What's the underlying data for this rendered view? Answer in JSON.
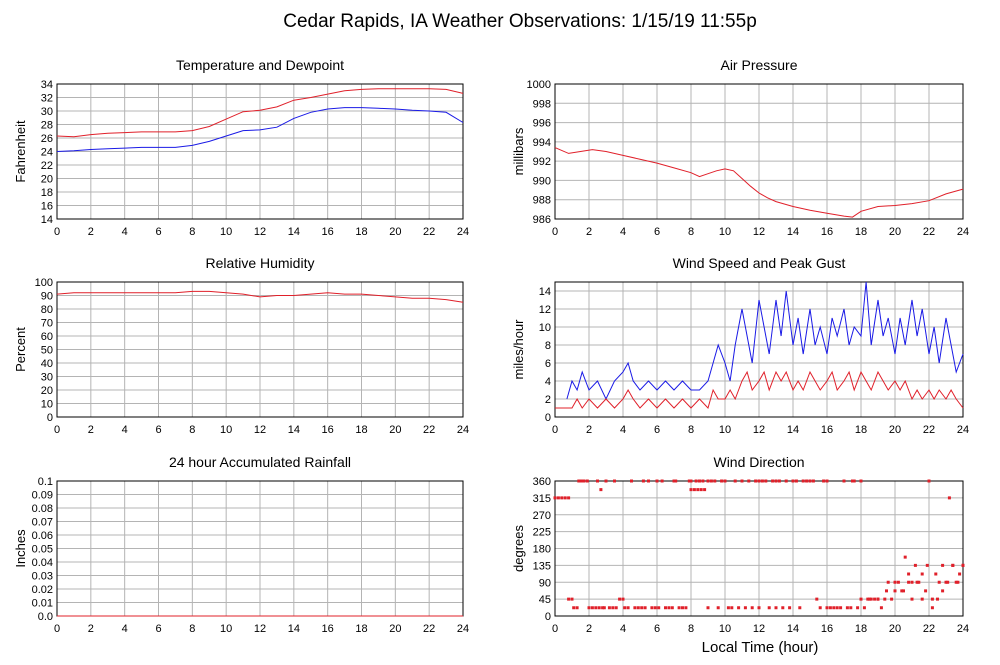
{
  "title": "Cedar Rapids, IA Weather Observations: 1/15/19 11:55p",
  "xlabel_bottom": "Local Time (hour)",
  "colors": {
    "red": "#e0202a",
    "blue": "#1a1ae6",
    "grid": "#b4b4b4",
    "frame": "#000000"
  },
  "chart_data": [
    {
      "type": "line",
      "title": "Temperature and Dewpoint",
      "ylabel": "Fahrenheit",
      "xlim": [
        0,
        24
      ],
      "ylim": [
        14,
        34
      ],
      "xticks": [
        0,
        2,
        4,
        6,
        8,
        10,
        12,
        14,
        16,
        18,
        20,
        22,
        24
      ],
      "yticks": [
        14,
        16,
        18,
        20,
        22,
        24,
        26,
        28,
        30,
        32,
        34
      ],
      "series": [
        {
          "color": "#e0202a",
          "x": [
            0,
            1,
            2,
            3,
            4,
            5,
            6,
            7,
            8,
            9,
            10,
            11,
            12,
            13,
            14,
            15,
            16,
            17,
            18,
            19,
            20,
            21,
            22,
            23,
            24
          ],
          "y": [
            26.3,
            26.2,
            26.5,
            26.7,
            26.8,
            26.9,
            26.9,
            26.9,
            27.1,
            27.7,
            28.8,
            29.9,
            30.1,
            30.6,
            31.6,
            32.0,
            32.5,
            33.0,
            33.2,
            33.3,
            33.3,
            33.3,
            33.3,
            33.2,
            32.6
          ]
        },
        {
          "color": "#1a1ae6",
          "x": [
            0,
            1,
            2,
            3,
            4,
            5,
            6,
            7,
            8,
            9,
            10,
            11,
            12,
            13,
            14,
            15,
            16,
            17,
            18,
            19,
            20,
            21,
            22,
            23,
            24
          ],
          "y": [
            24.0,
            24.1,
            24.3,
            24.4,
            24.5,
            24.6,
            24.6,
            24.6,
            24.9,
            25.5,
            26.3,
            27.1,
            27.2,
            27.6,
            28.9,
            29.8,
            30.3,
            30.5,
            30.5,
            30.4,
            30.3,
            30.1,
            30.0,
            29.8,
            28.3
          ]
        }
      ]
    },
    {
      "type": "line",
      "title": "Air Pressure",
      "ylabel": "millibars",
      "xlim": [
        0,
        24
      ],
      "ylim": [
        986,
        1000
      ],
      "xticks": [
        0,
        2,
        4,
        6,
        8,
        10,
        12,
        14,
        16,
        18,
        20,
        22,
        24
      ],
      "yticks": [
        986,
        988,
        990,
        992,
        994,
        996,
        998,
        1000
      ],
      "series": [
        {
          "color": "#e0202a",
          "x": [
            0,
            0.8,
            1.5,
            2.2,
            3,
            4,
            5,
            6,
            7,
            8,
            8.5,
            9,
            9.5,
            10,
            10.5,
            11,
            11.5,
            12,
            12.5,
            13,
            14,
            15,
            16,
            17,
            17.5,
            18,
            19,
            20,
            21,
            22,
            23,
            24
          ],
          "y": [
            993.4,
            992.8,
            993.0,
            993.2,
            993.0,
            992.6,
            992.2,
            991.8,
            991.3,
            990.8,
            990.4,
            990.7,
            991.0,
            991.2,
            991.0,
            990.2,
            989.4,
            988.7,
            988.2,
            987.8,
            987.3,
            986.9,
            986.6,
            986.3,
            986.2,
            986.8,
            987.3,
            987.4,
            987.6,
            987.9,
            988.6,
            989.1
          ]
        }
      ]
    },
    {
      "type": "line",
      "title": "Relative Humidity",
      "ylabel": "Percent",
      "xlim": [
        0,
        24
      ],
      "ylim": [
        0,
        100
      ],
      "xticks": [
        0,
        2,
        4,
        6,
        8,
        10,
        12,
        14,
        16,
        18,
        20,
        22,
        24
      ],
      "yticks": [
        0,
        10,
        20,
        30,
        40,
        50,
        60,
        70,
        80,
        90,
        100
      ],
      "series": [
        {
          "color": "#e0202a",
          "x": [
            0,
            1,
            2,
            3,
            4,
            5,
            6,
            7,
            8,
            9,
            10,
            11,
            12,
            13,
            14,
            15,
            16,
            17,
            18,
            19,
            20,
            21,
            22,
            23,
            24
          ],
          "y": [
            91,
            92,
            92,
            92,
            92,
            92,
            92,
            92,
            93,
            93,
            92,
            91,
            89,
            90,
            90,
            91,
            92,
            91,
            91,
            90,
            89,
            88,
            88,
            87,
            85
          ]
        }
      ]
    },
    {
      "type": "line",
      "title": "Wind Speed and Peak Gust",
      "ylabel": "miles/hour",
      "xlim": [
        0,
        24
      ],
      "ylim": [
        0,
        15
      ],
      "xticks": [
        0,
        2,
        4,
        6,
        8,
        10,
        12,
        14,
        16,
        18,
        20,
        22,
        24
      ],
      "yticks": [
        0,
        2,
        4,
        6,
        8,
        10,
        12,
        14
      ],
      "series": [
        {
          "color": "#1a1ae6",
          "x": [
            0.7,
            1,
            1.3,
            1.6,
            2,
            2.5,
            3,
            3.5,
            4,
            4.3,
            4.6,
            5,
            5.5,
            6,
            6.5,
            7,
            7.5,
            8,
            8.5,
            9,
            9.3,
            9.6,
            10,
            10.3,
            10.6,
            11,
            11.3,
            11.6,
            12,
            12.3,
            12.6,
            13,
            13.3,
            13.6,
            14,
            14.3,
            14.6,
            15,
            15.3,
            15.6,
            16,
            16.3,
            16.6,
            17,
            17.3,
            17.6,
            18,
            18.3,
            18.6,
            19,
            19.3,
            19.6,
            20,
            20.3,
            20.6,
            21,
            21.3,
            21.6,
            22,
            22.3,
            22.6,
            23,
            23.3,
            23.6,
            24
          ],
          "y": [
            2,
            4,
            3,
            5,
            3,
            4,
            2,
            4,
            5,
            6,
            4,
            3,
            4,
            3,
            4,
            3,
            4,
            3,
            3,
            4,
            6,
            8,
            6,
            4,
            8,
            12,
            9,
            6,
            13,
            10,
            7,
            13,
            9,
            14,
            8,
            11,
            7,
            12,
            8,
            10,
            7,
            11,
            9,
            12,
            8,
            10,
            9,
            15,
            8,
            13,
            9,
            11,
            7,
            11,
            8,
            13,
            9,
            12,
            7,
            10,
            6,
            11,
            8,
            5,
            7
          ]
        },
        {
          "color": "#e0202a",
          "x": [
            0,
            0.5,
            1,
            1.3,
            1.6,
            2,
            2.5,
            3,
            3.5,
            4,
            4.3,
            4.6,
            5,
            5.5,
            6,
            6.5,
            7,
            7.5,
            8,
            8.5,
            9,
            9.3,
            9.6,
            10,
            10.3,
            10.6,
            11,
            11.3,
            11.6,
            12,
            12.3,
            12.6,
            13,
            13.3,
            13.6,
            14,
            14.3,
            14.6,
            15,
            15.3,
            15.6,
            16,
            16.3,
            16.6,
            17,
            17.3,
            17.6,
            18,
            18.3,
            18.6,
            19,
            19.3,
            19.6,
            20,
            20.3,
            20.6,
            21,
            21.3,
            21.6,
            22,
            22.3,
            22.6,
            23,
            23.3,
            23.6,
            24
          ],
          "y": [
            1,
            1,
            1,
            2,
            1,
            2,
            1,
            2,
            1,
            2,
            3,
            2,
            1,
            2,
            1,
            2,
            1,
            2,
            1,
            2,
            1,
            3,
            2,
            2,
            3,
            2,
            4,
            5,
            3,
            4,
            5,
            3,
            5,
            4,
            5,
            3,
            4,
            3,
            5,
            4,
            3,
            4,
            5,
            3,
            4,
            5,
            3,
            5,
            4,
            3,
            5,
            4,
            3,
            4,
            3,
            4,
            2,
            3,
            2,
            3,
            2,
            3,
            2,
            3,
            2,
            1
          ]
        }
      ]
    },
    {
      "type": "line",
      "title": "24 hour Accumulated Rainfall",
      "ylabel": "Inches",
      "xlim": [
        0,
        24
      ],
      "ylim": [
        0,
        0.1
      ],
      "xticks": [
        0,
        2,
        4,
        6,
        8,
        10,
        12,
        14,
        16,
        18,
        20,
        22,
        24
      ],
      "yticks": [
        "0.0",
        "0.01",
        "0.02",
        "0.03",
        "0.04",
        "0.05",
        "0.06",
        "0.07",
        "0.08",
        "0.09",
        "0.1"
      ],
      "series": [
        {
          "color": "#e0202a",
          "x": [
            0,
            24
          ],
          "y": [
            0,
            0
          ]
        }
      ]
    },
    {
      "type": "scatter",
      "title": "Wind Direction",
      "ylabel": "degrees",
      "xlabel": "Local Time (hour)",
      "xlim": [
        0,
        24
      ],
      "ylim": [
        0,
        360
      ],
      "xticks": [
        0,
        2,
        4,
        6,
        8,
        10,
        12,
        14,
        16,
        18,
        20,
        22,
        24
      ],
      "yticks": [
        0,
        45,
        90,
        135,
        180,
        225,
        270,
        315,
        360
      ],
      "series": [
        {
          "color": "#e0202a",
          "x": [
            0,
            0.2,
            0.4,
            0.6,
            0.8,
            0.8,
            1.0,
            1.1,
            1.3,
            1.5,
            1.7,
            1.9,
            2.0,
            2.2,
            2.4,
            2.6,
            2.7,
            2.8,
            2.9,
            3.0,
            3.2,
            3.4,
            3.6,
            3.8,
            4.0,
            4.1,
            4.3,
            4.5,
            4.7,
            4.9,
            5.1,
            5.3,
            5.5,
            5.7,
            5.9,
            6.1,
            6.3,
            6.5,
            6.7,
            6.9,
            7.1,
            7.3,
            7.5,
            7.7,
            7.9,
            8.0,
            8.2,
            8.4,
            8.6,
            8.8,
            9.0,
            9.2,
            9.4,
            9.6,
            9.8,
            10.0,
            10.2,
            10.4,
            10.6,
            10.8,
            11.0,
            11.2,
            11.4,
            11.6,
            11.8,
            12.0,
            12.2,
            12.4,
            12.6,
            12.8,
            13.0,
            13.2,
            13.4,
            13.6,
            13.8,
            14.0,
            14.2,
            14.4,
            14.6,
            14.8,
            15.0,
            15.2,
            15.4,
            15.6,
            15.8,
            16.0,
            16.2,
            16.4,
            16.6,
            16.8,
            17.0,
            17.2,
            17.4,
            17.6,
            17.8,
            18.0,
            18.2,
            18.4,
            18.6,
            18.8,
            19.0,
            19.2,
            19.4,
            19.6,
            19.8,
            20.0,
            20.2,
            20.4,
            20.6,
            20.8,
            21.0,
            21.2,
            21.4,
            21.6,
            21.8,
            22.0,
            22.2,
            22.4,
            22.6,
            22.8,
            23.0,
            23.2,
            23.4,
            23.6,
            23.8,
            24.0,
            1.4,
            1.6,
            2.5,
            3.5,
            4.5,
            5.2,
            6.0,
            7.0,
            8.0,
            8.3,
            8.5,
            8.7,
            9.0,
            10.0,
            11.0,
            12.0,
            13.0,
            14.0,
            15.0,
            16.0,
            17.0,
            17.5,
            18.0,
            18.5,
            19.0,
            19.5,
            20.0,
            20.5,
            20.8,
            21.0,
            21.3,
            21.6,
            21.9,
            22.2,
            22.5,
            22.8,
            23.1,
            23.4,
            23.7,
            24.0
          ],
          "y": [
            315,
            315,
            315,
            315,
            315,
            45,
            45,
            22,
            22,
            360,
            360,
            360,
            22,
            22,
            22,
            22,
            337,
            22,
            22,
            360,
            22,
            22,
            22,
            45,
            45,
            22,
            22,
            360,
            22,
            22,
            22,
            22,
            360,
            22,
            22,
            22,
            360,
            22,
            22,
            22,
            360,
            22,
            22,
            22,
            360,
            337,
            337,
            337,
            337,
            337,
            22,
            360,
            360,
            22,
            360,
            360,
            22,
            22,
            360,
            22,
            360,
            22,
            360,
            22,
            360,
            22,
            360,
            360,
            22,
            360,
            22,
            360,
            22,
            360,
            22,
            360,
            360,
            22,
            360,
            360,
            360,
            360,
            45,
            22,
            360,
            22,
            22,
            22,
            22,
            22,
            360,
            22,
            22,
            360,
            22,
            360,
            22,
            45,
            45,
            45,
            45,
            22,
            45,
            90,
            45,
            67,
            90,
            67,
            157,
            112,
            90,
            135,
            90,
            112,
            67,
            360,
            45,
            112,
            90,
            135,
            90,
            315,
            135,
            90,
            112,
            135,
            360,
            360,
            360,
            360,
            360,
            360,
            360,
            360,
            360,
            360,
            360,
            360,
            360,
            360,
            360,
            360,
            360,
            360,
            360,
            360,
            360,
            360,
            45,
            45,
            45,
            67,
            90,
            67,
            90,
            45,
            90,
            45,
            135,
            22,
            45,
            67,
            90,
            135,
            90,
            135
          ]
        }
      ]
    }
  ]
}
